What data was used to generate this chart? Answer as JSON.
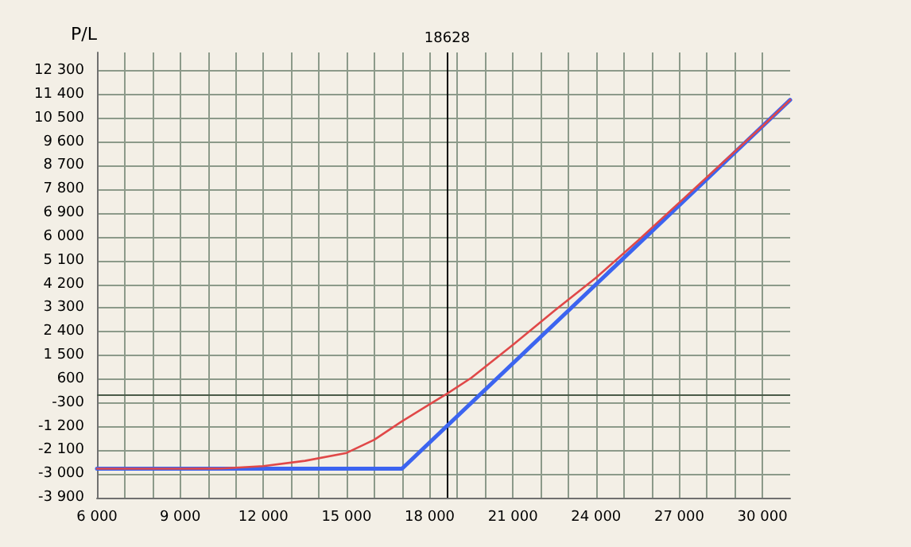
{
  "chart_data": {
    "type": "line",
    "ylabel": "P/L",
    "xlim": [
      6000,
      31000
    ],
    "xticks": [
      {
        "value": 6000,
        "label": "6 000"
      },
      {
        "value": 7000,
        "label": null
      },
      {
        "value": 8000,
        "label": null
      },
      {
        "value": 9000,
        "label": "9 000"
      },
      {
        "value": 10000,
        "label": null
      },
      {
        "value": 11000,
        "label": null
      },
      {
        "value": 12000,
        "label": "12 000"
      },
      {
        "value": 13000,
        "label": null
      },
      {
        "value": 14000,
        "label": null
      },
      {
        "value": 15000,
        "label": "15 000"
      },
      {
        "value": 16000,
        "label": null
      },
      {
        "value": 17000,
        "label": null
      },
      {
        "value": 18000,
        "label": "18 000"
      },
      {
        "value": 19000,
        "label": null
      },
      {
        "value": 20000,
        "label": null
      },
      {
        "value": 21000,
        "label": "21 000"
      },
      {
        "value": 22000,
        "label": null
      },
      {
        "value": 23000,
        "label": null
      },
      {
        "value": 24000,
        "label": "24 000"
      },
      {
        "value": 25000,
        "label": null
      },
      {
        "value": 26000,
        "label": null
      },
      {
        "value": 27000,
        "label": "27 000"
      },
      {
        "value": 28000,
        "label": null
      },
      {
        "value": 29000,
        "label": null
      },
      {
        "value": 30000,
        "label": "30 000"
      }
    ],
    "ylim": [
      -3900,
      13000
    ],
    "yticks": [
      {
        "value": -3900,
        "label": "-3 900"
      },
      {
        "value": -3000,
        "label": "-3 000"
      },
      {
        "value": -2100,
        "label": "-2 100"
      },
      {
        "value": -1200,
        "label": "-1 200"
      },
      -300,
      600,
      {
        "value": 1500,
        "label": "1 500"
      },
      {
        "value": 2400,
        "label": "2 400"
      },
      {
        "value": 3300,
        "label": "3 300"
      },
      {
        "value": 4200,
        "label": "4 200"
      },
      {
        "value": 5100,
        "label": "5 100"
      },
      {
        "value": 6000,
        "label": "6 000"
      },
      {
        "value": 6900,
        "label": "6 900"
      },
      {
        "value": 7800,
        "label": "7 800"
      },
      {
        "value": 8700,
        "label": "8 700"
      },
      {
        "value": 9600,
        "label": "9 600"
      },
      {
        "value": 10500,
        "label": "10 500"
      },
      {
        "value": 11400,
        "label": "11 400"
      },
      {
        "value": 12300,
        "label": "12 300"
      }
    ],
    "grid": true,
    "marker": "none",
    "line_style": "solid",
    "series": [
      {
        "color": "#e04848",
        "x": [
          6000,
          9000,
          10500,
          12000,
          13500,
          15000,
          16000,
          17000,
          18000,
          18628,
          19500,
          21000,
          22500,
          24000,
          25500,
          27000,
          28500,
          30000,
          31000
        ],
        "values": [
          -2800,
          -2800,
          -2790,
          -2700,
          -2500,
          -2200,
          -1700,
          -1000,
          -350,
          50,
          650,
          1900,
          3200,
          4450,
          5850,
          7300,
          8750,
          10200,
          11200
        ]
      },
      {
        "color": "#3c64f0",
        "x": [
          6000,
          17000,
          31000
        ],
        "values": [
          -2800,
          -2800,
          11200
        ]
      }
    ],
    "ref_lines": [
      {
        "axis": "x",
        "value": 18628,
        "label": "18628",
        "color": "#000000"
      },
      {
        "axis": "y",
        "value": 0,
        "label": null,
        "color": "#4a5a48"
      }
    ]
  }
}
